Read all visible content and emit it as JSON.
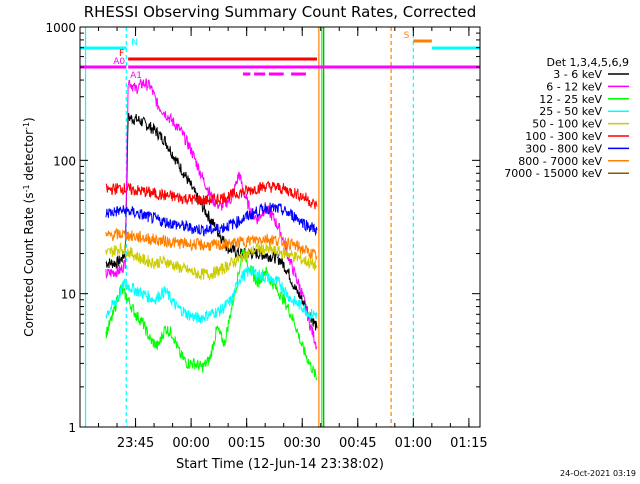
{
  "chart_data": {
    "type": "line",
    "title": "RHESSI Observing Summary Count Rates, Corrected",
    "xlabel": "Start Time (12-Jun-14 23:38:02)",
    "ylabel_main": "Corrected Count Rate (s",
    "ylabel_sup1": "-1",
    "ylabel_mid": " detector",
    "ylabel_sup2": "-1",
    "ylabel_end": ")",
    "yscale": "log",
    "ylim": [
      1,
      1000
    ],
    "xlim_minutes": [
      -8,
      100
    ],
    "y_ticks": [
      {
        "value": 1,
        "label": "1"
      },
      {
        "value": 10,
        "label": "10"
      },
      {
        "value": 100,
        "label": "100"
      },
      {
        "value": 1000,
        "label": "1000"
      }
    ],
    "x_ticks": [
      {
        "t": 7,
        "label": "23:45"
      },
      {
        "t": 22,
        "label": "00:00"
      },
      {
        "t": 37,
        "label": "00:15"
      },
      {
        "t": 52,
        "label": "00:30"
      },
      {
        "t": 67,
        "label": "00:45"
      },
      {
        "t": 82,
        "label": "01:00"
      },
      {
        "t": 97,
        "label": "01:15"
      }
    ],
    "legend_title": "Det 1,3,4,5,6,9",
    "legend_position": "right",
    "series": [
      {
        "name": "3 - 6 keV",
        "color": "#000000",
        "points": [
          [
            -1,
            17
          ],
          [
            2,
            17
          ],
          [
            3,
            18
          ],
          [
            4.2,
            20
          ],
          [
            5,
            210
          ],
          [
            8,
            200
          ],
          [
            12,
            170
          ],
          [
            15,
            140
          ],
          [
            18,
            100
          ],
          [
            21,
            72
          ],
          [
            24,
            50
          ],
          [
            27,
            37
          ],
          [
            30,
            27
          ],
          [
            32,
            22
          ],
          [
            35,
            20
          ],
          [
            40,
            20
          ],
          [
            44,
            19
          ],
          [
            46,
            18
          ],
          [
            48,
            15
          ],
          [
            50,
            11
          ],
          [
            52,
            9
          ],
          [
            54,
            7
          ],
          [
            56,
            5.5
          ]
        ]
      },
      {
        "name": "6 - 12 keV",
        "color": "#ff00ff",
        "points": [
          [
            -1,
            14
          ],
          [
            3,
            15
          ],
          [
            4.2,
            17
          ],
          [
            5,
            400
          ],
          [
            7,
            340
          ],
          [
            9,
            380
          ],
          [
            11,
            360
          ],
          [
            13,
            260
          ],
          [
            16,
            210
          ],
          [
            19,
            170
          ],
          [
            22,
            120
          ],
          [
            25,
            75
          ],
          [
            28,
            50
          ],
          [
            30,
            45
          ],
          [
            33,
            52
          ],
          [
            35,
            80
          ],
          [
            36,
            60
          ],
          [
            38,
            42
          ],
          [
            40,
            36
          ],
          [
            42,
            44
          ],
          [
            44,
            38
          ],
          [
            46,
            30
          ],
          [
            48,
            20
          ],
          [
            50,
            14
          ],
          [
            52,
            10
          ],
          [
            54,
            6
          ],
          [
            56,
            4
          ]
        ]
      },
      {
        "name": "12 - 25 keV",
        "color": "#00ff00",
        "points": [
          [
            -1,
            5
          ],
          [
            1,
            7
          ],
          [
            2,
            9
          ],
          [
            3,
            11
          ],
          [
            5,
            9
          ],
          [
            7,
            7
          ],
          [
            9,
            6
          ],
          [
            11,
            4.5
          ],
          [
            13,
            4
          ],
          [
            15,
            5.5
          ],
          [
            17,
            5
          ],
          [
            19,
            3.5
          ],
          [
            21,
            3
          ],
          [
            23,
            3
          ],
          [
            25,
            2.8
          ],
          [
            27,
            3.2
          ],
          [
            29,
            5.5
          ],
          [
            31,
            4.2
          ],
          [
            33,
            8
          ],
          [
            35,
            15
          ],
          [
            36,
            22
          ],
          [
            38,
            15
          ],
          [
            40,
            12
          ],
          [
            42,
            15
          ],
          [
            44,
            12
          ],
          [
            46,
            10
          ],
          [
            48,
            8
          ],
          [
            50,
            6
          ],
          [
            52,
            4
          ],
          [
            54,
            3
          ],
          [
            56,
            2.3
          ]
        ]
      },
      {
        "name": "25 - 50 keV",
        "color": "#00ffff",
        "points": [
          [
            -1,
            7
          ],
          [
            2,
            9
          ],
          [
            4,
            12
          ],
          [
            6,
            11
          ],
          [
            9,
            10
          ],
          [
            12,
            9
          ],
          [
            15,
            10.5
          ],
          [
            18,
            8
          ],
          [
            21,
            7
          ],
          [
            24,
            6.5
          ],
          [
            27,
            7
          ],
          [
            30,
            7.5
          ],
          [
            33,
            9
          ],
          [
            35,
            13
          ],
          [
            38,
            15
          ],
          [
            40,
            14
          ],
          [
            43,
            13
          ],
          [
            46,
            12
          ],
          [
            49,
            9
          ],
          [
            52,
            8
          ],
          [
            54,
            7
          ],
          [
            56,
            7
          ]
        ]
      },
      {
        "name": "50 - 100 keV",
        "color": "#cccc00",
        "points": [
          [
            -1,
            20
          ],
          [
            3,
            22
          ],
          [
            6,
            20
          ],
          [
            9,
            18
          ],
          [
            12,
            17
          ],
          [
            15,
            17.5
          ],
          [
            18,
            16
          ],
          [
            21,
            15
          ],
          [
            24,
            14
          ],
          [
            27,
            14
          ],
          [
            30,
            15
          ],
          [
            33,
            17
          ],
          [
            36,
            19
          ],
          [
            40,
            22
          ],
          [
            44,
            21
          ],
          [
            48,
            20
          ],
          [
            52,
            18
          ],
          [
            56,
            16
          ]
        ]
      },
      {
        "name": "100 - 300 keV",
        "color": "#ff0000",
        "points": [
          [
            -1,
            60
          ],
          [
            3,
            62
          ],
          [
            6,
            60
          ],
          [
            10,
            58
          ],
          [
            14,
            55
          ],
          [
            18,
            53
          ],
          [
            22,
            51
          ],
          [
            26,
            50
          ],
          [
            30,
            52
          ],
          [
            34,
            56
          ],
          [
            38,
            60
          ],
          [
            42,
            64
          ],
          [
            46,
            62
          ],
          [
            50,
            57
          ],
          [
            53,
            52
          ],
          [
            56,
            45
          ]
        ]
      },
      {
        "name": "300 - 800 keV",
        "color": "#0000ff",
        "points": [
          [
            -1,
            40
          ],
          [
            3,
            42
          ],
          [
            6,
            41
          ],
          [
            10,
            38
          ],
          [
            14,
            35
          ],
          [
            18,
            33
          ],
          [
            22,
            31
          ],
          [
            26,
            30
          ],
          [
            30,
            31
          ],
          [
            34,
            34
          ],
          [
            38,
            39
          ],
          [
            42,
            44
          ],
          [
            46,
            43
          ],
          [
            50,
            38
          ],
          [
            53,
            33
          ],
          [
            56,
            30
          ]
        ]
      },
      {
        "name": "800 - 7000 keV",
        "color": "#ff8000",
        "points": [
          [
            -1,
            27
          ],
          [
            3,
            28
          ],
          [
            6,
            27
          ],
          [
            10,
            26
          ],
          [
            14,
            25
          ],
          [
            18,
            24
          ],
          [
            22,
            23.5
          ],
          [
            26,
            23
          ],
          [
            30,
            23
          ],
          [
            34,
            24
          ],
          [
            38,
            25
          ],
          [
            42,
            26
          ],
          [
            46,
            25
          ],
          [
            50,
            23
          ],
          [
            53,
            21
          ],
          [
            56,
            19
          ]
        ]
      },
      {
        "name": "7000 - 15000 keV",
        "color": "#806000",
        "points": []
      }
    ],
    "flags": [
      {
        "label": "N",
        "color": "#00ffff",
        "segments": [
          [
            -8,
            4.5
          ],
          [
            87,
            100
          ]
        ]
      },
      {
        "label": "S",
        "color": "#ff8000",
        "segments": [
          [
            82,
            87
          ]
        ]
      },
      {
        "label": "F",
        "color": "#ff0000",
        "segments": [
          [
            5,
            56
          ]
        ]
      },
      {
        "label": "A0",
        "color": "#ff00ff",
        "segments": [
          [
            -8,
            4.5
          ],
          [
            5,
            100
          ]
        ]
      },
      {
        "label": "A1",
        "color": "#ff00ff",
        "segments": [
          [
            36,
            38
          ],
          [
            39,
            42
          ],
          [
            43,
            47
          ],
          [
            49,
            53
          ]
        ]
      }
    ],
    "markers": [
      {
        "t": -6.5,
        "color": "#00ffff",
        "style": "solid"
      },
      {
        "t": 4.5,
        "color": "#00ffff",
        "style": "dashed"
      },
      {
        "t": 56.5,
        "color": "#ff8000",
        "style": "solid"
      },
      {
        "t": 57.3,
        "color": "#00ff00",
        "style": "solid"
      },
      {
        "t": 57.8,
        "color": "#00a000",
        "style": "solid"
      },
      {
        "t": 76,
        "color": "#ff8000",
        "style": "dashed"
      },
      {
        "t": 82,
        "color": "#00ffff",
        "style": "dashed"
      }
    ]
  },
  "footer_date": "24-Oct-2021 03:19"
}
